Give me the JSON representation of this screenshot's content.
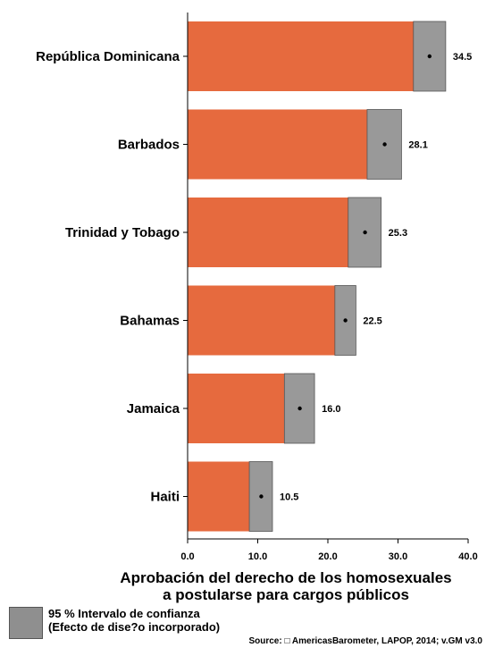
{
  "chart_data": {
    "type": "bar",
    "orientation": "horizontal",
    "categories": [
      "República Dominicana",
      "Barbados",
      "Trinidad y Tobago",
      "Bahamas",
      "Jamaica",
      "Haiti"
    ],
    "values": [
      34.5,
      28.1,
      25.3,
      22.5,
      16.0,
      10.5
    ],
    "value_labels": [
      "34.5",
      "28.1",
      "25.3",
      "22.5",
      "16.0",
      "10.5"
    ],
    "ci_low": [
      32.2,
      25.6,
      22.9,
      21.0,
      13.8,
      8.8
    ],
    "ci_high": [
      36.8,
      30.5,
      27.6,
      24.0,
      18.1,
      12.1
    ],
    "xlim": [
      0,
      40
    ],
    "xticks": [
      0,
      10,
      20,
      30,
      40
    ],
    "xtick_labels": [
      "0.0",
      "10.0",
      "20.0",
      "30.0",
      "40.0"
    ],
    "xlabel_line1": "Aprobación del derecho de los homosexuales",
    "xlabel_line2": "a postularse para cargos públicos",
    "grid": false,
    "legend_position": "bottom-left",
    "colors": {
      "bar": "#e66a3e",
      "ci": "#999999",
      "ci_border": "#555555"
    }
  },
  "legend": {
    "line1": "95 % Intervalo de confianza",
    "line2": "(Efecto de dise?o incorporado)"
  },
  "source": "Source: □ AmericasBarometer, LAPOP, 2014; v.GM v3.0"
}
